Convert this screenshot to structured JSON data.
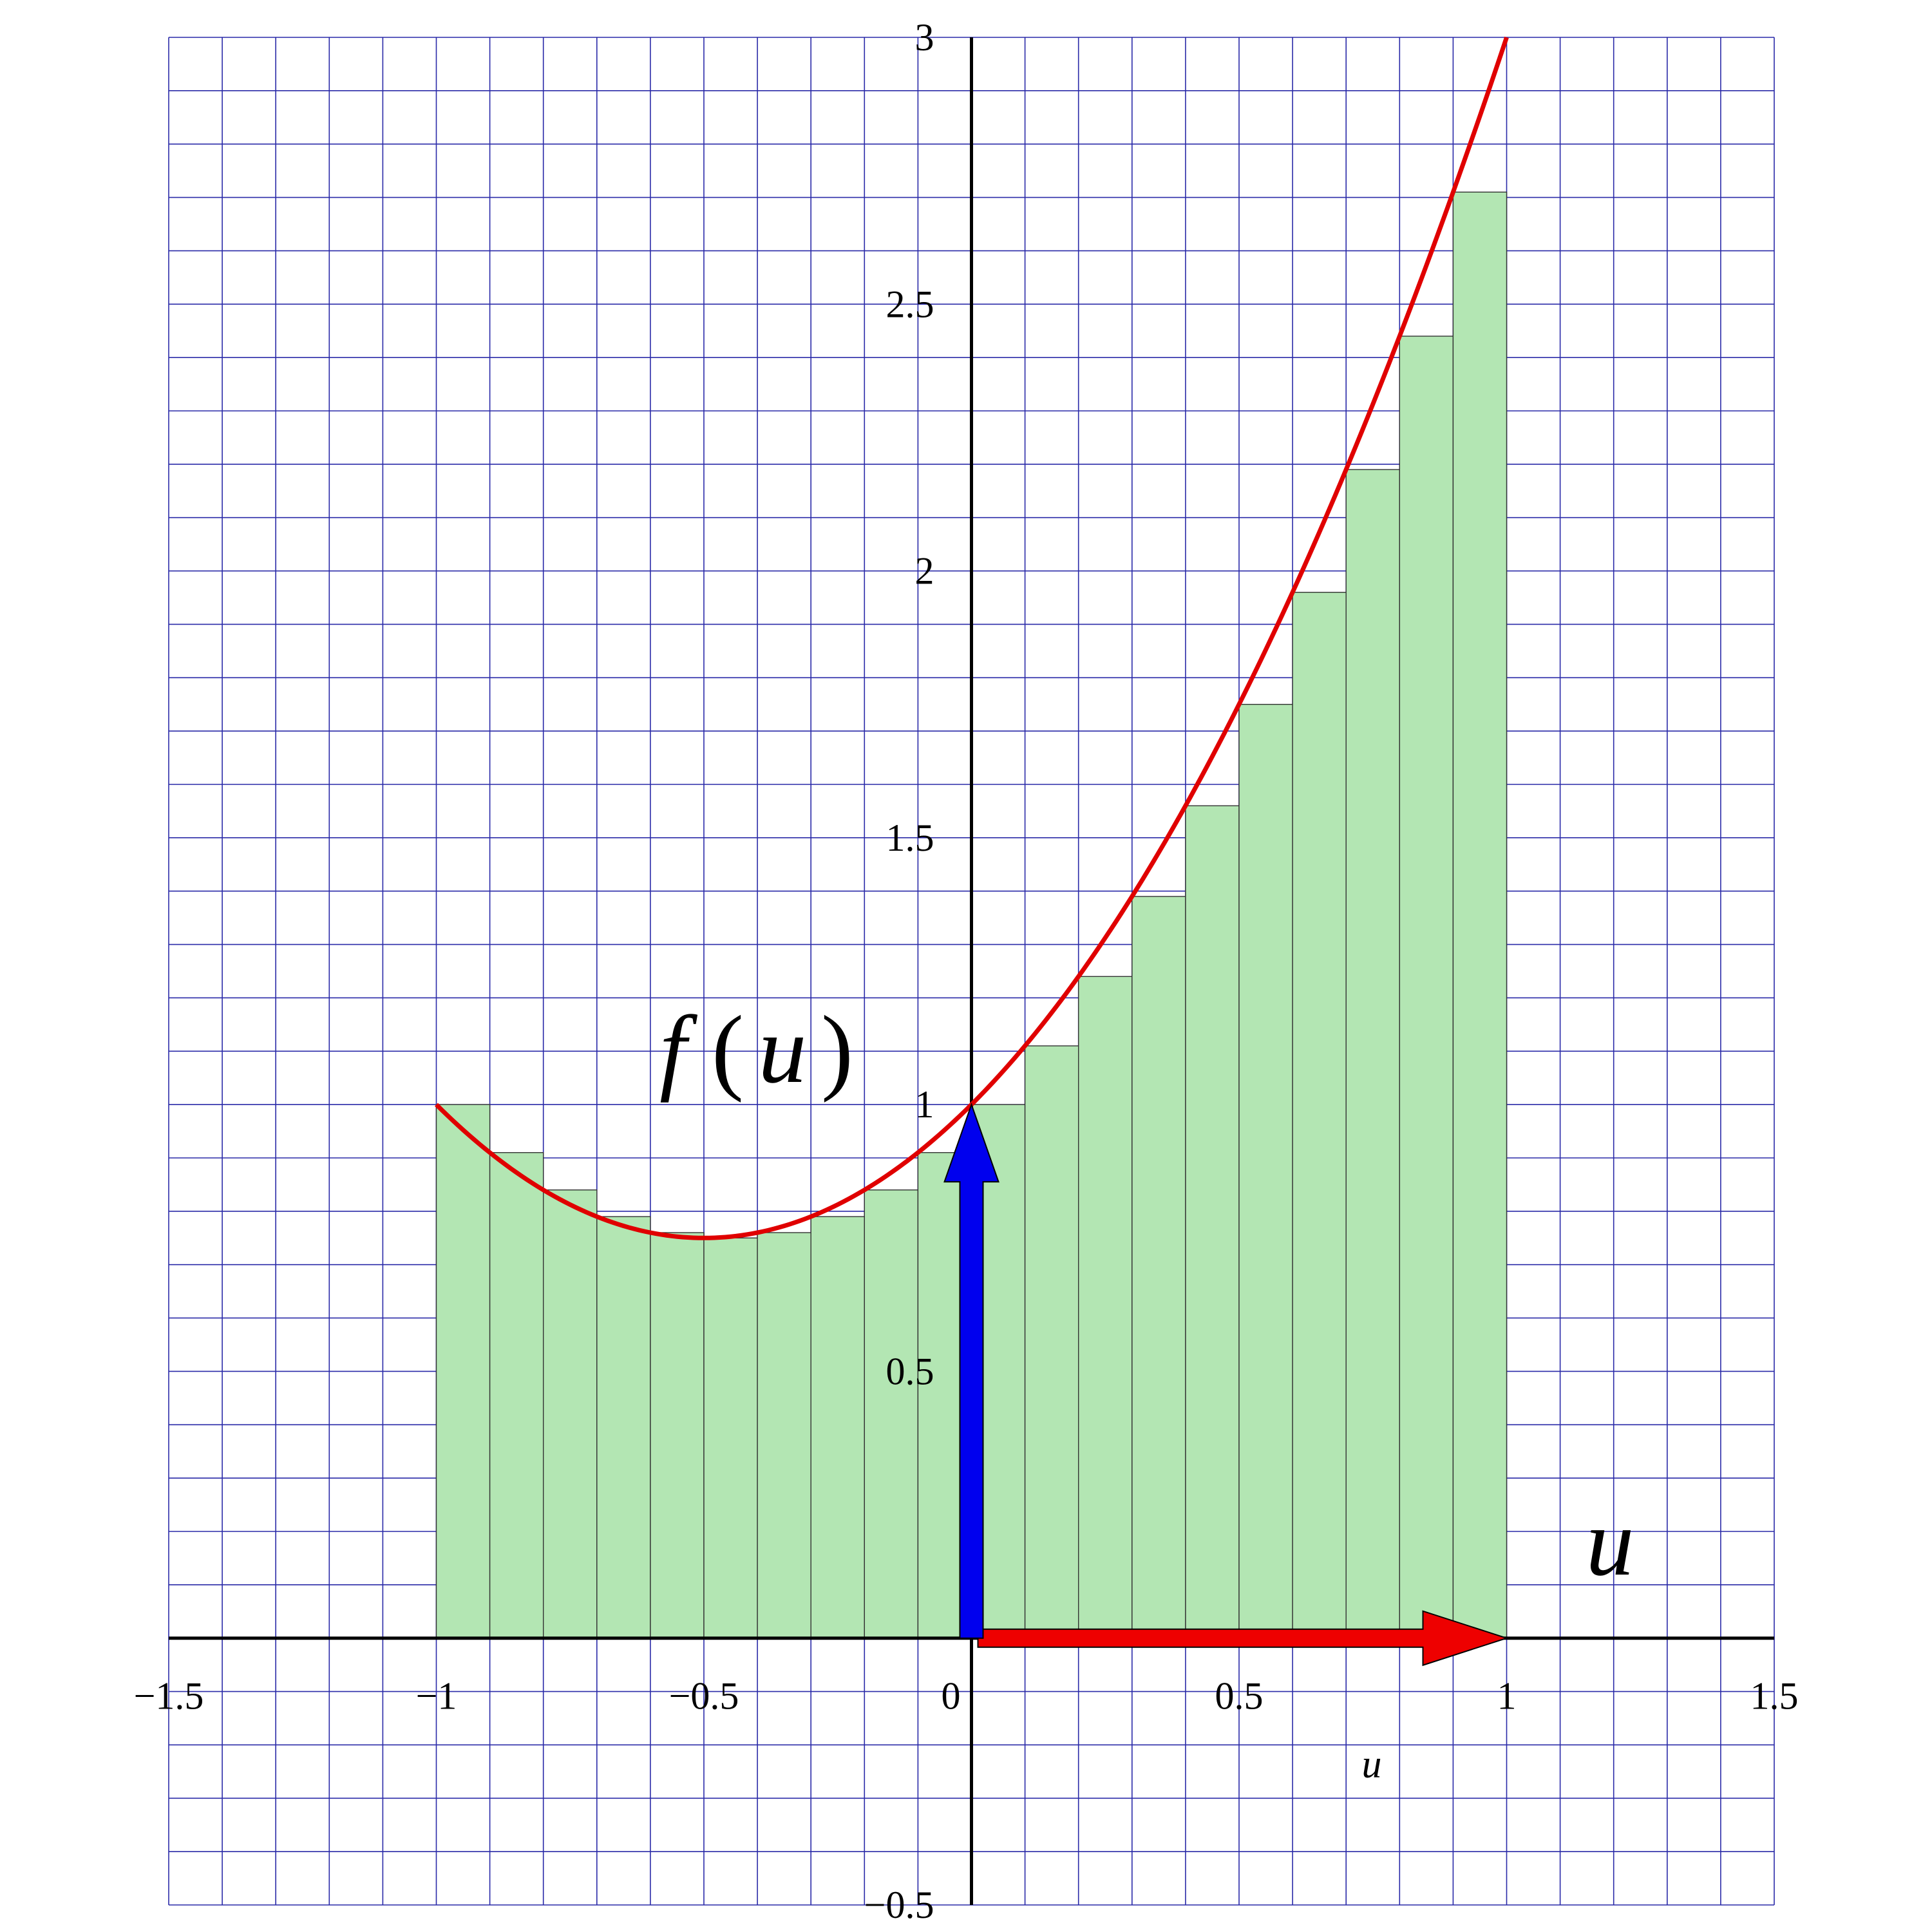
{
  "chart_data": {
    "type": "bar",
    "title": "",
    "xlim": [
      -1.5,
      1.5
    ],
    "ylim": [
      -0.5,
      3
    ],
    "grid": true,
    "grid_spacing": 0.1,
    "x_ticks": [
      {
        "value": -1.5,
        "label": "−1.5"
      },
      {
        "value": -1,
        "label": "−1"
      },
      {
        "value": -0.5,
        "label": "−0.5"
      },
      {
        "value": 0,
        "label": "0"
      },
      {
        "value": 0.5,
        "label": "0.5"
      },
      {
        "value": 1,
        "label": "1"
      },
      {
        "value": 1.5,
        "label": "1.5"
      }
    ],
    "y_ticks": [
      {
        "value": -0.5,
        "label": "−0.5"
      },
      {
        "value": 0.5,
        "label": "0.5"
      },
      {
        "value": 1,
        "label": "1"
      },
      {
        "value": 1.5,
        "label": "1.5"
      },
      {
        "value": 2,
        "label": "2"
      },
      {
        "value": 2.5,
        "label": "2.5"
      },
      {
        "value": 3,
        "label": "3"
      }
    ],
    "xlabel": "u",
    "curve": {
      "label_f": "f",
      "label_var": "u",
      "label_open": "(",
      "label_close": ")",
      "coefficients": [
        1,
        1,
        1
      ],
      "x_range": [
        -1,
        1
      ],
      "color": "#e00000"
    },
    "bars": {
      "fill": "#b3e6b3",
      "stroke": "#333333",
      "width": 0.1,
      "left_edges": [
        -1,
        -0.9,
        -0.8,
        -0.7,
        -0.6,
        -0.5,
        -0.4,
        -0.3,
        -0.2,
        -0.1,
        0,
        0.1,
        0.2,
        0.3,
        0.4,
        0.5,
        0.6,
        0.7,
        0.8,
        0.9
      ],
      "values": [
        1,
        0.91,
        0.84,
        0.79,
        0.76,
        0.75,
        0.76,
        0.79,
        0.84,
        0.91,
        1,
        1.11,
        1.24,
        1.39,
        1.56,
        1.75,
        1.96,
        2.19,
        2.44,
        2.71
      ]
    },
    "arrows": [
      {
        "name": "horizontal-arrow",
        "color": "#ee0000",
        "from": [
          0,
          0
        ],
        "to": [
          1,
          0
        ]
      },
      {
        "name": "vertical-arrow",
        "color": "#0000ee",
        "from": [
          0,
          0
        ],
        "to": [
          0,
          1
        ]
      }
    ],
    "axis_u_label": "u"
  }
}
